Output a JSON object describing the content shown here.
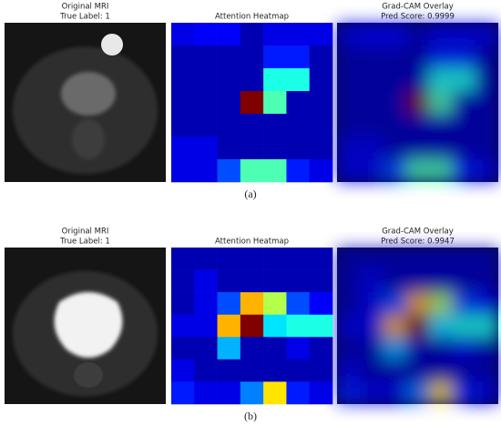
{
  "panels": [
    {
      "original_title": "Original MRI",
      "true_label": "True Label: 1",
      "heatmap_title": "Attention Heatmap",
      "overlay_title": "Grad-CAM Overlay",
      "pred_score": "Pred Score: 0.9999",
      "caption": "(a)",
      "heatmap": [
        [
          0.1,
          0.12,
          0.12,
          0.05,
          0.1,
          0.1,
          0.1
        ],
        [
          0.05,
          0.05,
          0.05,
          0.05,
          0.15,
          0.15,
          0.05
        ],
        [
          0.05,
          0.05,
          0.05,
          0.05,
          0.4,
          0.4,
          0.05
        ],
        [
          0.05,
          0.05,
          0.05,
          1.0,
          0.45,
          0.05,
          0.05
        ],
        [
          0.05,
          0.05,
          0.05,
          0.05,
          0.05,
          0.05,
          0.05
        ],
        [
          0.1,
          0.1,
          0.05,
          0.05,
          0.05,
          0.05,
          0.05
        ],
        [
          0.1,
          0.1,
          0.2,
          0.45,
          0.45,
          0.15,
          0.1
        ]
      ]
    },
    {
      "original_title": "Original MRI",
      "true_label": "True Label: 1",
      "heatmap_title": "Attention Heatmap",
      "overlay_title": "Grad-CAM Overlay",
      "pred_score": "Pred Score: 0.9947",
      "caption": "(b)",
      "heatmap": [
        [
          0.05,
          0.05,
          0.05,
          0.05,
          0.05,
          0.05,
          0.05
        ],
        [
          0.05,
          0.1,
          0.05,
          0.05,
          0.05,
          0.05,
          0.05
        ],
        [
          0.05,
          0.1,
          0.2,
          0.7,
          0.55,
          0.2,
          0.12
        ],
        [
          0.1,
          0.1,
          0.7,
          1.0,
          0.35,
          0.4,
          0.4
        ],
        [
          0.05,
          0.05,
          0.3,
          0.05,
          0.05,
          0.1,
          0.05
        ],
        [
          0.1,
          0.05,
          0.05,
          0.05,
          0.05,
          0.05,
          0.05
        ],
        [
          0.15,
          0.1,
          0.1,
          0.25,
          0.65,
          0.15,
          0.1
        ]
      ]
    }
  ]
}
